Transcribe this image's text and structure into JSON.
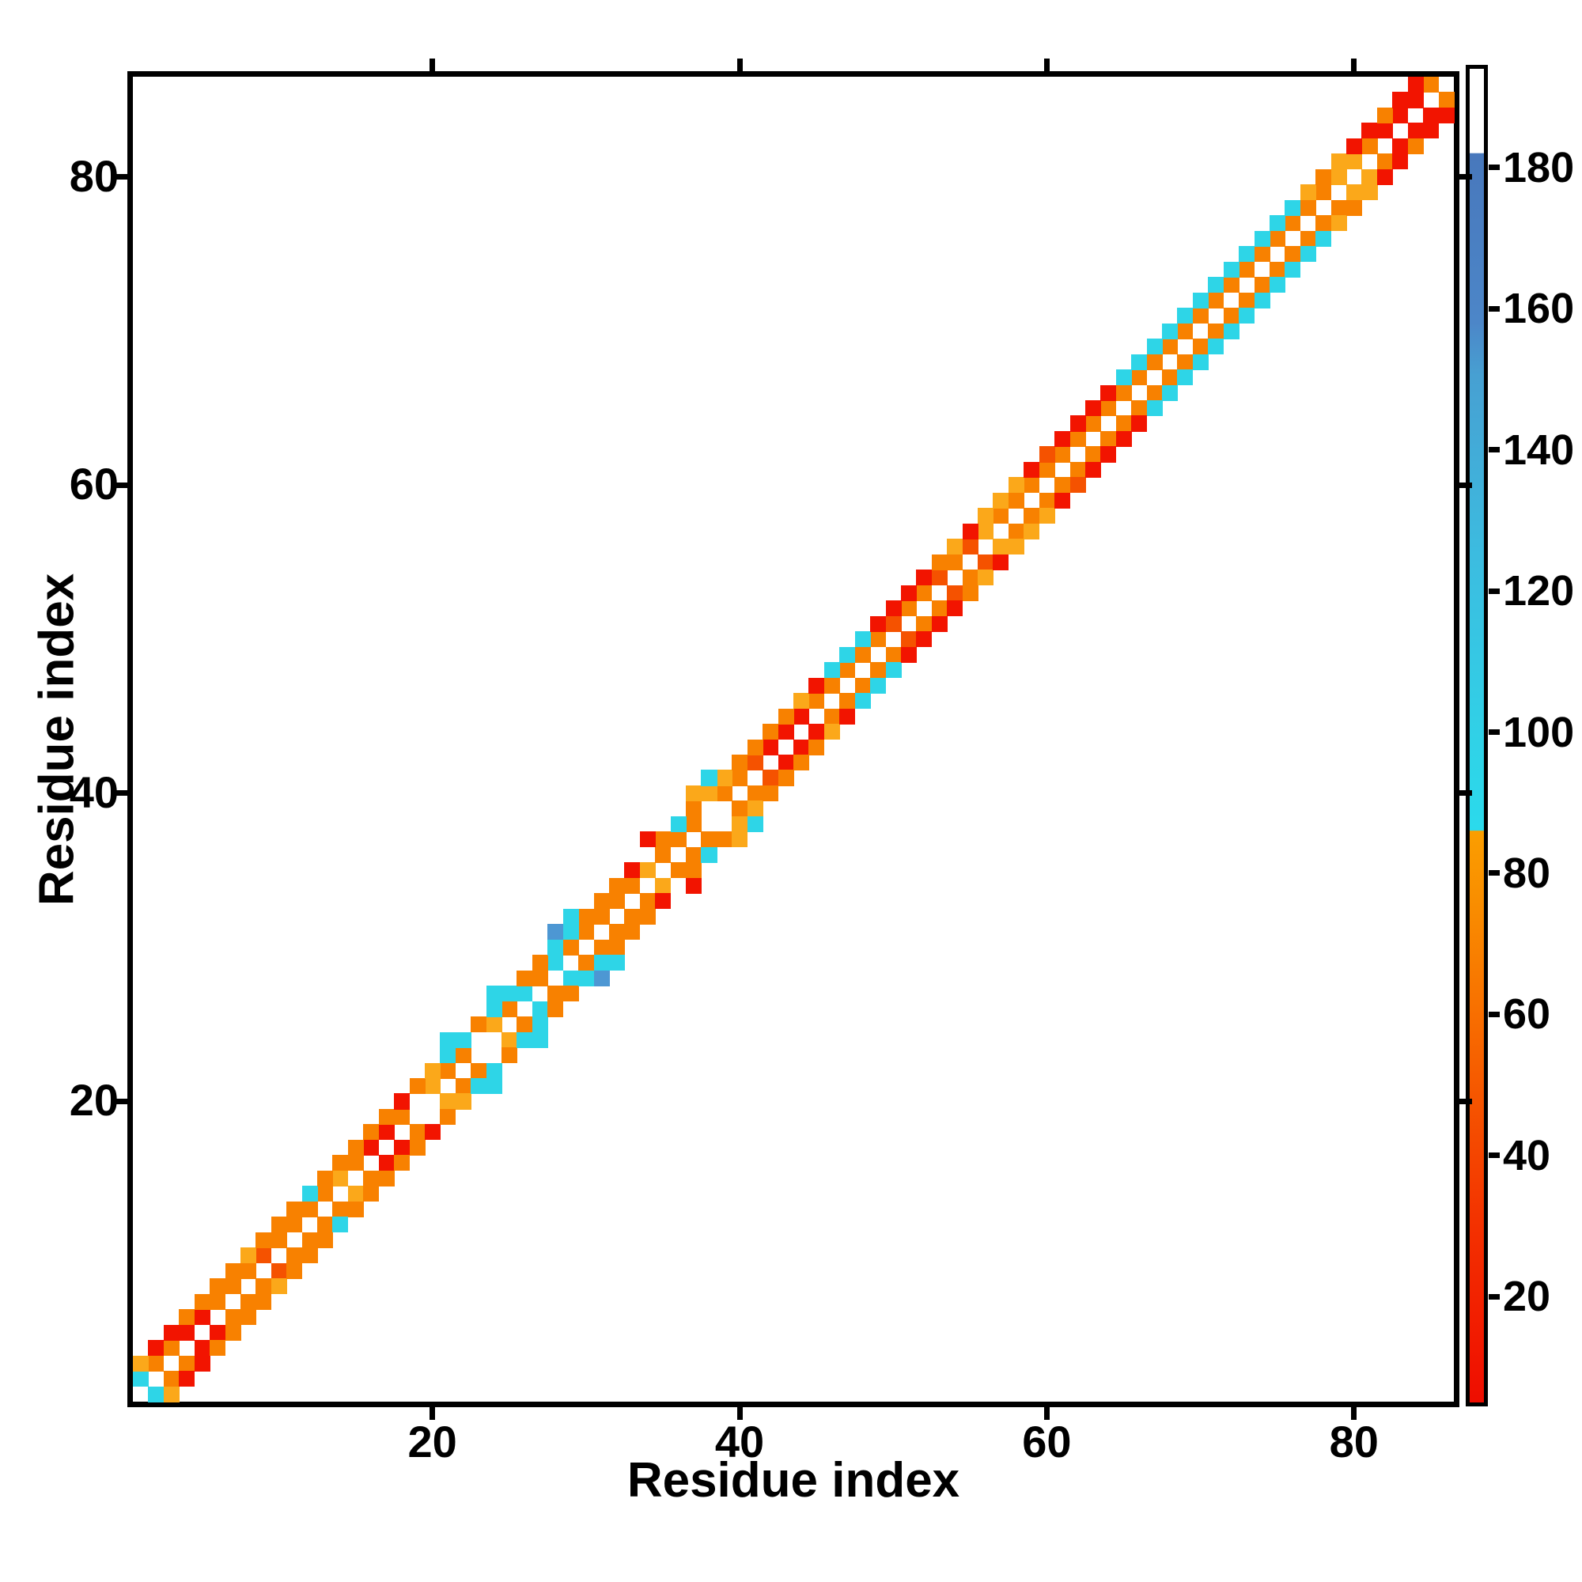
{
  "figure": {
    "background": "#ffffff",
    "chart_data": {
      "type": "heatmap",
      "subtype": "residue-contact-map",
      "title": "",
      "xlabel": "Residue index",
      "ylabel": "Residue index",
      "n_residues": 86,
      "x_ticks": [
        20,
        40,
        60,
        80
      ],
      "y_ticks": [
        20,
        40,
        60,
        80
      ],
      "symmetric": true,
      "diagonal": "empty",
      "palette": {
        "R": "#F21400",
        "OR": "#F55200",
        "O": "#F88100",
        "A": "#FBA81A",
        "C": "#2ED5E7",
        "B": "#4D97D3",
        "W": "none"
      },
      "offset1_colors": [
        "C",
        "O",
        "O",
        "R",
        "R",
        "O",
        "O",
        "O",
        "OR",
        "O",
        "O",
        "O",
        "O",
        "A",
        "O",
        "R",
        "R",
        "O",
        "W",
        "A",
        "O",
        "O",
        "W",
        "A",
        "O",
        "C",
        "O",
        "C",
        "O",
        "O",
        "O",
        "O",
        "O",
        "A",
        "O",
        "O",
        "O",
        "W",
        "O",
        "O",
        "OR",
        "R",
        "R",
        "R",
        "O",
        "O",
        "O",
        "O",
        "O",
        "OR",
        "O",
        "O",
        "OR",
        "O",
        "OR",
        "A",
        "O",
        "O",
        "O",
        "O",
        "O",
        "O",
        "O",
        "O",
        "O",
        "O",
        "O",
        "O",
        "O",
        "O",
        "O",
        "O",
        "O",
        "O",
        "O",
        "O",
        "O",
        "O",
        "A",
        "A",
        "O",
        "R",
        "R",
        "R",
        "O"
      ],
      "offset2_colors": [
        "A",
        "R",
        "R",
        "O",
        "O",
        "O",
        "O",
        "A",
        "O",
        "O",
        "O",
        "C",
        "O",
        "O",
        "O",
        "O",
        "O",
        "R",
        "O",
        "A",
        "C",
        "C",
        "O",
        "C",
        "C",
        "O",
        "O",
        "C",
        "C",
        "O",
        "O",
        "O",
        "R",
        "W",
        "O",
        "C",
        "O",
        "A",
        "A",
        "O",
        "O",
        "O",
        "O",
        "A",
        "R",
        "C",
        "C",
        "C",
        "R",
        "R",
        "R",
        "R",
        "O",
        "A",
        "R",
        "A",
        "A",
        "A",
        "R",
        "OR",
        "R",
        "R",
        "R",
        "R",
        "C",
        "C",
        "C",
        "C",
        "C",
        "C",
        "C",
        "C",
        "C",
        "C",
        "C",
        "C",
        "A",
        "O",
        "A",
        "R",
        "R",
        "O",
        "R",
        "R"
      ],
      "extra_contacts": [
        [
          21,
          24,
          "C"
        ],
        [
          24,
          27,
          "C"
        ],
        [
          28,
          31,
          "B"
        ],
        [
          29,
          32,
          "C"
        ],
        [
          34,
          37,
          "R"
        ],
        [
          37,
          40,
          "A"
        ],
        [
          38,
          41,
          "C"
        ]
      ]
    },
    "colorbar": {
      "vmin": 5,
      "vmax": 194,
      "ticks": [
        20,
        40,
        60,
        80,
        100,
        120,
        140,
        160,
        180
      ],
      "gradient_stops": [
        [
          0,
          "#FFFFFF"
        ],
        [
          6.3,
          "#FFFFFF"
        ],
        [
          6.35,
          "#4878BC"
        ],
        [
          19,
          "#4C86C8"
        ],
        [
          23,
          "#47A0D2"
        ],
        [
          36.5,
          "#3CBCE0"
        ],
        [
          52,
          "#2FD4E8"
        ],
        [
          57.1,
          "#2BDAEC"
        ],
        [
          57.15,
          "#FA9E00"
        ],
        [
          63,
          "#F98C00"
        ],
        [
          70,
          "#F87200"
        ],
        [
          77,
          "#F55600"
        ],
        [
          87,
          "#F33000"
        ],
        [
          96,
          "#F11800"
        ],
        [
          100,
          "#EE0D00"
        ]
      ]
    }
  }
}
